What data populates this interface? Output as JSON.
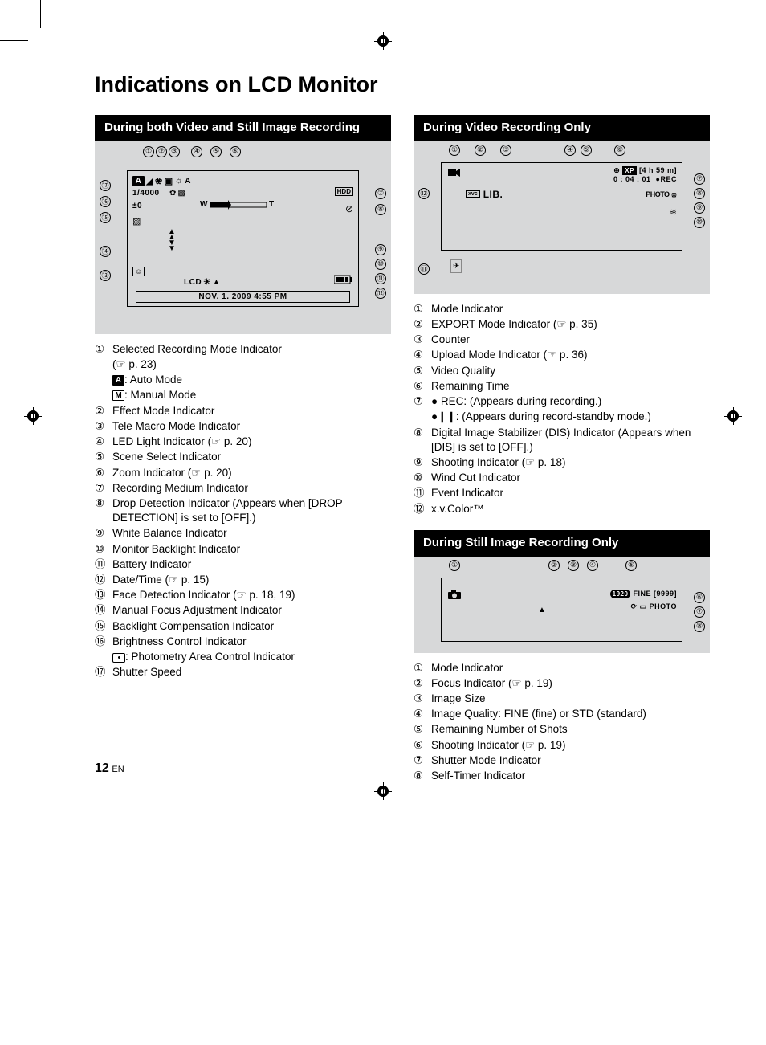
{
  "page_title": "Indications on LCD Monitor",
  "page_number": "12",
  "page_lang": "EN",
  "sections": {
    "both": {
      "header": "During both Video and Still Image Recording",
      "screen": {
        "top_callouts": [
          "①",
          "②",
          "③",
          "④",
          "⑤",
          "⑥"
        ],
        "left_callouts": [
          "⑰",
          "⑯",
          "⑮",
          "⑭",
          "⑬"
        ],
        "right_callouts": [
          "⑦",
          "⑧",
          "⑨",
          "⑩",
          "⑪",
          "⑫"
        ],
        "icons_row1": "A",
        "shutter": "1/4000",
        "exposure": "±0",
        "zoom_label_w": "W",
        "zoom_label_t": "T",
        "hdd": "HDD",
        "lcd_label": "LCD",
        "datetime": "NOV. 1. 2009   4:55 PM"
      },
      "legend": [
        {
          "n": "①",
          "t": "Selected Recording Mode Indicator",
          "ref": "(☞ p. 23)"
        },
        {
          "sub": true,
          "badge": "A",
          "t": ": Auto Mode"
        },
        {
          "sub": true,
          "outline": "M",
          "t": ": Manual Mode"
        },
        {
          "n": "②",
          "t": "Effect Mode Indicator"
        },
        {
          "n": "③",
          "t": "Tele Macro Mode Indicator"
        },
        {
          "n": "④",
          "t": "LED Light Indicator (☞ p. 20)"
        },
        {
          "n": "⑤",
          "t": "Scene Select Indicator"
        },
        {
          "n": "⑥",
          "t": "Zoom Indicator (☞ p. 20)"
        },
        {
          "n": "⑦",
          "t": "Recording Medium Indicator"
        },
        {
          "n": "⑧",
          "t": "Drop Detection Indicator (Appears when [DROP DETECTION] is set to [OFF].)"
        },
        {
          "n": "⑨",
          "t": "White Balance Indicator"
        },
        {
          "n": "⑩",
          "t": "Monitor Backlight Indicator"
        },
        {
          "n": "⑪",
          "t": "Battery Indicator"
        },
        {
          "n": "⑫",
          "t": "Date/Time (☞ p. 15)"
        },
        {
          "n": "⑬",
          "t": "Face Detection Indicator (☞ p. 18, 19)"
        },
        {
          "n": "⑭",
          "t": "Manual Focus Adjustment Indicator"
        },
        {
          "n": "⑮",
          "t": "Backlight Compensation Indicator"
        },
        {
          "n": "⑯",
          "t": "Brightness Control Indicator"
        },
        {
          "sub": true,
          "photometry": true,
          "t": ": Photometry Area Control Indicator"
        },
        {
          "n": "⑰",
          "t": "Shutter Speed"
        }
      ]
    },
    "video": {
      "header": "During Video Recording Only",
      "screen": {
        "top_callouts": [
          "①",
          "②",
          "③",
          "④",
          "⑤",
          "⑥"
        ],
        "left_callouts": [
          "⑫",
          "⑪"
        ],
        "right_callouts": [
          "⑦",
          "⑧",
          "⑨",
          "⑩"
        ],
        "xp": "XP",
        "remaining": "[4 h 59 m]",
        "counter": "0 : 04 : 01",
        "rec": "●REC",
        "lib": "LIB.",
        "xvc": "xvc",
        "photo": "PHOTO"
      },
      "legend": [
        {
          "n": "①",
          "t": "Mode Indicator"
        },
        {
          "n": "②",
          "t": "EXPORT Mode Indicator (☞ p. 35)"
        },
        {
          "n": "③",
          "t": "Counter"
        },
        {
          "n": "④",
          "t": "Upload Mode Indicator (☞ p. 36)"
        },
        {
          "n": "⑤",
          "t": "Video Quality"
        },
        {
          "n": "⑥",
          "t": "Remaining Time"
        },
        {
          "n": "⑦",
          "t": "● REC: (Appears during recording.)"
        },
        {
          "sub": true,
          "t": "●❙❙: (Appears during record-standby mode.)"
        },
        {
          "n": "⑧",
          "t": "Digital Image Stabilizer (DIS) Indicator (Appears when [DIS] is set to [OFF].)"
        },
        {
          "n": "⑨",
          "t": "Shooting Indicator (☞ p. 18)"
        },
        {
          "n": "⑩",
          "t": "Wind Cut Indicator"
        },
        {
          "n": "⑪",
          "t": "Event Indicator"
        },
        {
          "n": "⑫",
          "t": "x.v.Color™"
        }
      ]
    },
    "still": {
      "header": "During Still Image Recording Only",
      "screen": {
        "top_callouts": [
          "①",
          "②",
          "③",
          "④",
          "⑤"
        ],
        "right_callouts": [
          "⑥",
          "⑦",
          "⑧"
        ],
        "size": "1920",
        "quality": "FINE",
        "shots": "[9999]",
        "photo": "PHOTO"
      },
      "legend": [
        {
          "n": "①",
          "t": "Mode Indicator"
        },
        {
          "n": "②",
          "t": "Focus Indicator (☞ p. 19)"
        },
        {
          "n": "③",
          "t": "Image Size"
        },
        {
          "n": "④",
          "t": "Image Quality: FINE (fine) or STD (standard)"
        },
        {
          "n": "⑤",
          "t": "Remaining Number of Shots"
        },
        {
          "n": "⑥",
          "t": "Shooting Indicator (☞ p. 19)"
        },
        {
          "n": "⑦",
          "t": "Shutter Mode Indicator"
        },
        {
          "n": "⑧",
          "t": "Self-Timer Indicator"
        }
      ]
    }
  },
  "colors": {
    "header_bg": "#000000",
    "header_fg": "#ffffff",
    "diagram_bg": "#d7d8d9",
    "text": "#000000"
  }
}
